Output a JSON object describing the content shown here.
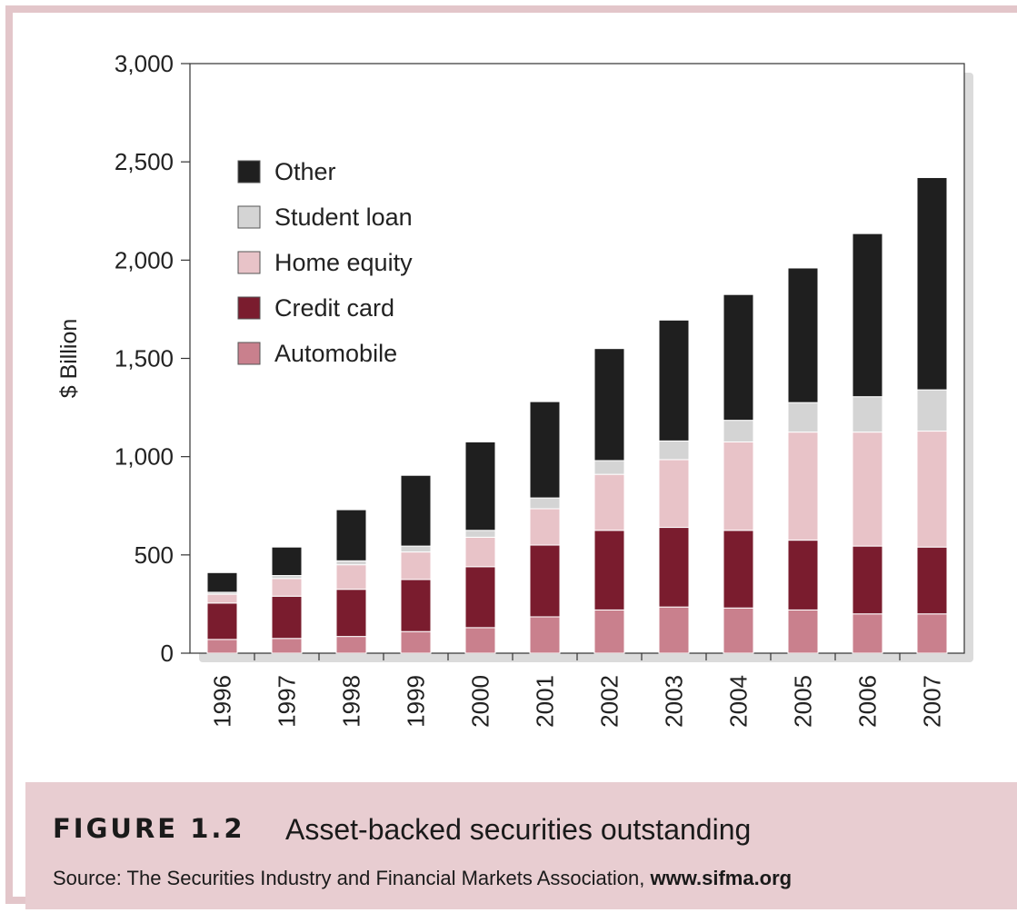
{
  "chart_data": {
    "type": "bar",
    "stacked": true,
    "ylabel": "$ Billion",
    "xlabel": "",
    "ylim": [
      0,
      3000
    ],
    "yticks": [
      "0",
      "500",
      "1,000",
      "1,500",
      "2,000",
      "2,500",
      "3,000"
    ],
    "ytick_values": [
      0,
      500,
      1000,
      1500,
      2000,
      2500,
      3000
    ],
    "categories": [
      "1996",
      "1997",
      "1998",
      "1999",
      "2000",
      "2001",
      "2002",
      "2003",
      "2004",
      "2005",
      "2006",
      "2007"
    ],
    "legend_position": "top-left",
    "grid": false,
    "series": [
      {
        "name": "Automobile",
        "color": "#c9808d",
        "values": [
          70,
          75,
          85,
          110,
          130,
          185,
          220,
          235,
          230,
          220,
          200,
          200
        ]
      },
      {
        "name": "Credit card",
        "color": "#7a1c2e",
        "values": [
          185,
          215,
          240,
          265,
          310,
          365,
          405,
          405,
          395,
          355,
          345,
          340
        ]
      },
      {
        "name": "Home equity",
        "color": "#e8c3c8",
        "values": [
          45,
          90,
          125,
          140,
          150,
          185,
          285,
          345,
          450,
          550,
          580,
          590
        ]
      },
      {
        "name": "Student loan",
        "color": "#d4d4d4",
        "values": [
          10,
          15,
          20,
          30,
          35,
          55,
          70,
          95,
          110,
          150,
          180,
          210
        ]
      },
      {
        "name": "Other",
        "color": "#1f1f1f",
        "values": [
          100,
          145,
          260,
          360,
          450,
          490,
          570,
          615,
          640,
          685,
          830,
          1080
        ]
      }
    ]
  },
  "caption": {
    "figure_label": "FIGURE 1.2",
    "title": "Asset-backed securities outstanding",
    "source_prefix": "Source: The Securities Industry and Financial Markets Association, ",
    "source_link": "www.sifma.org"
  }
}
